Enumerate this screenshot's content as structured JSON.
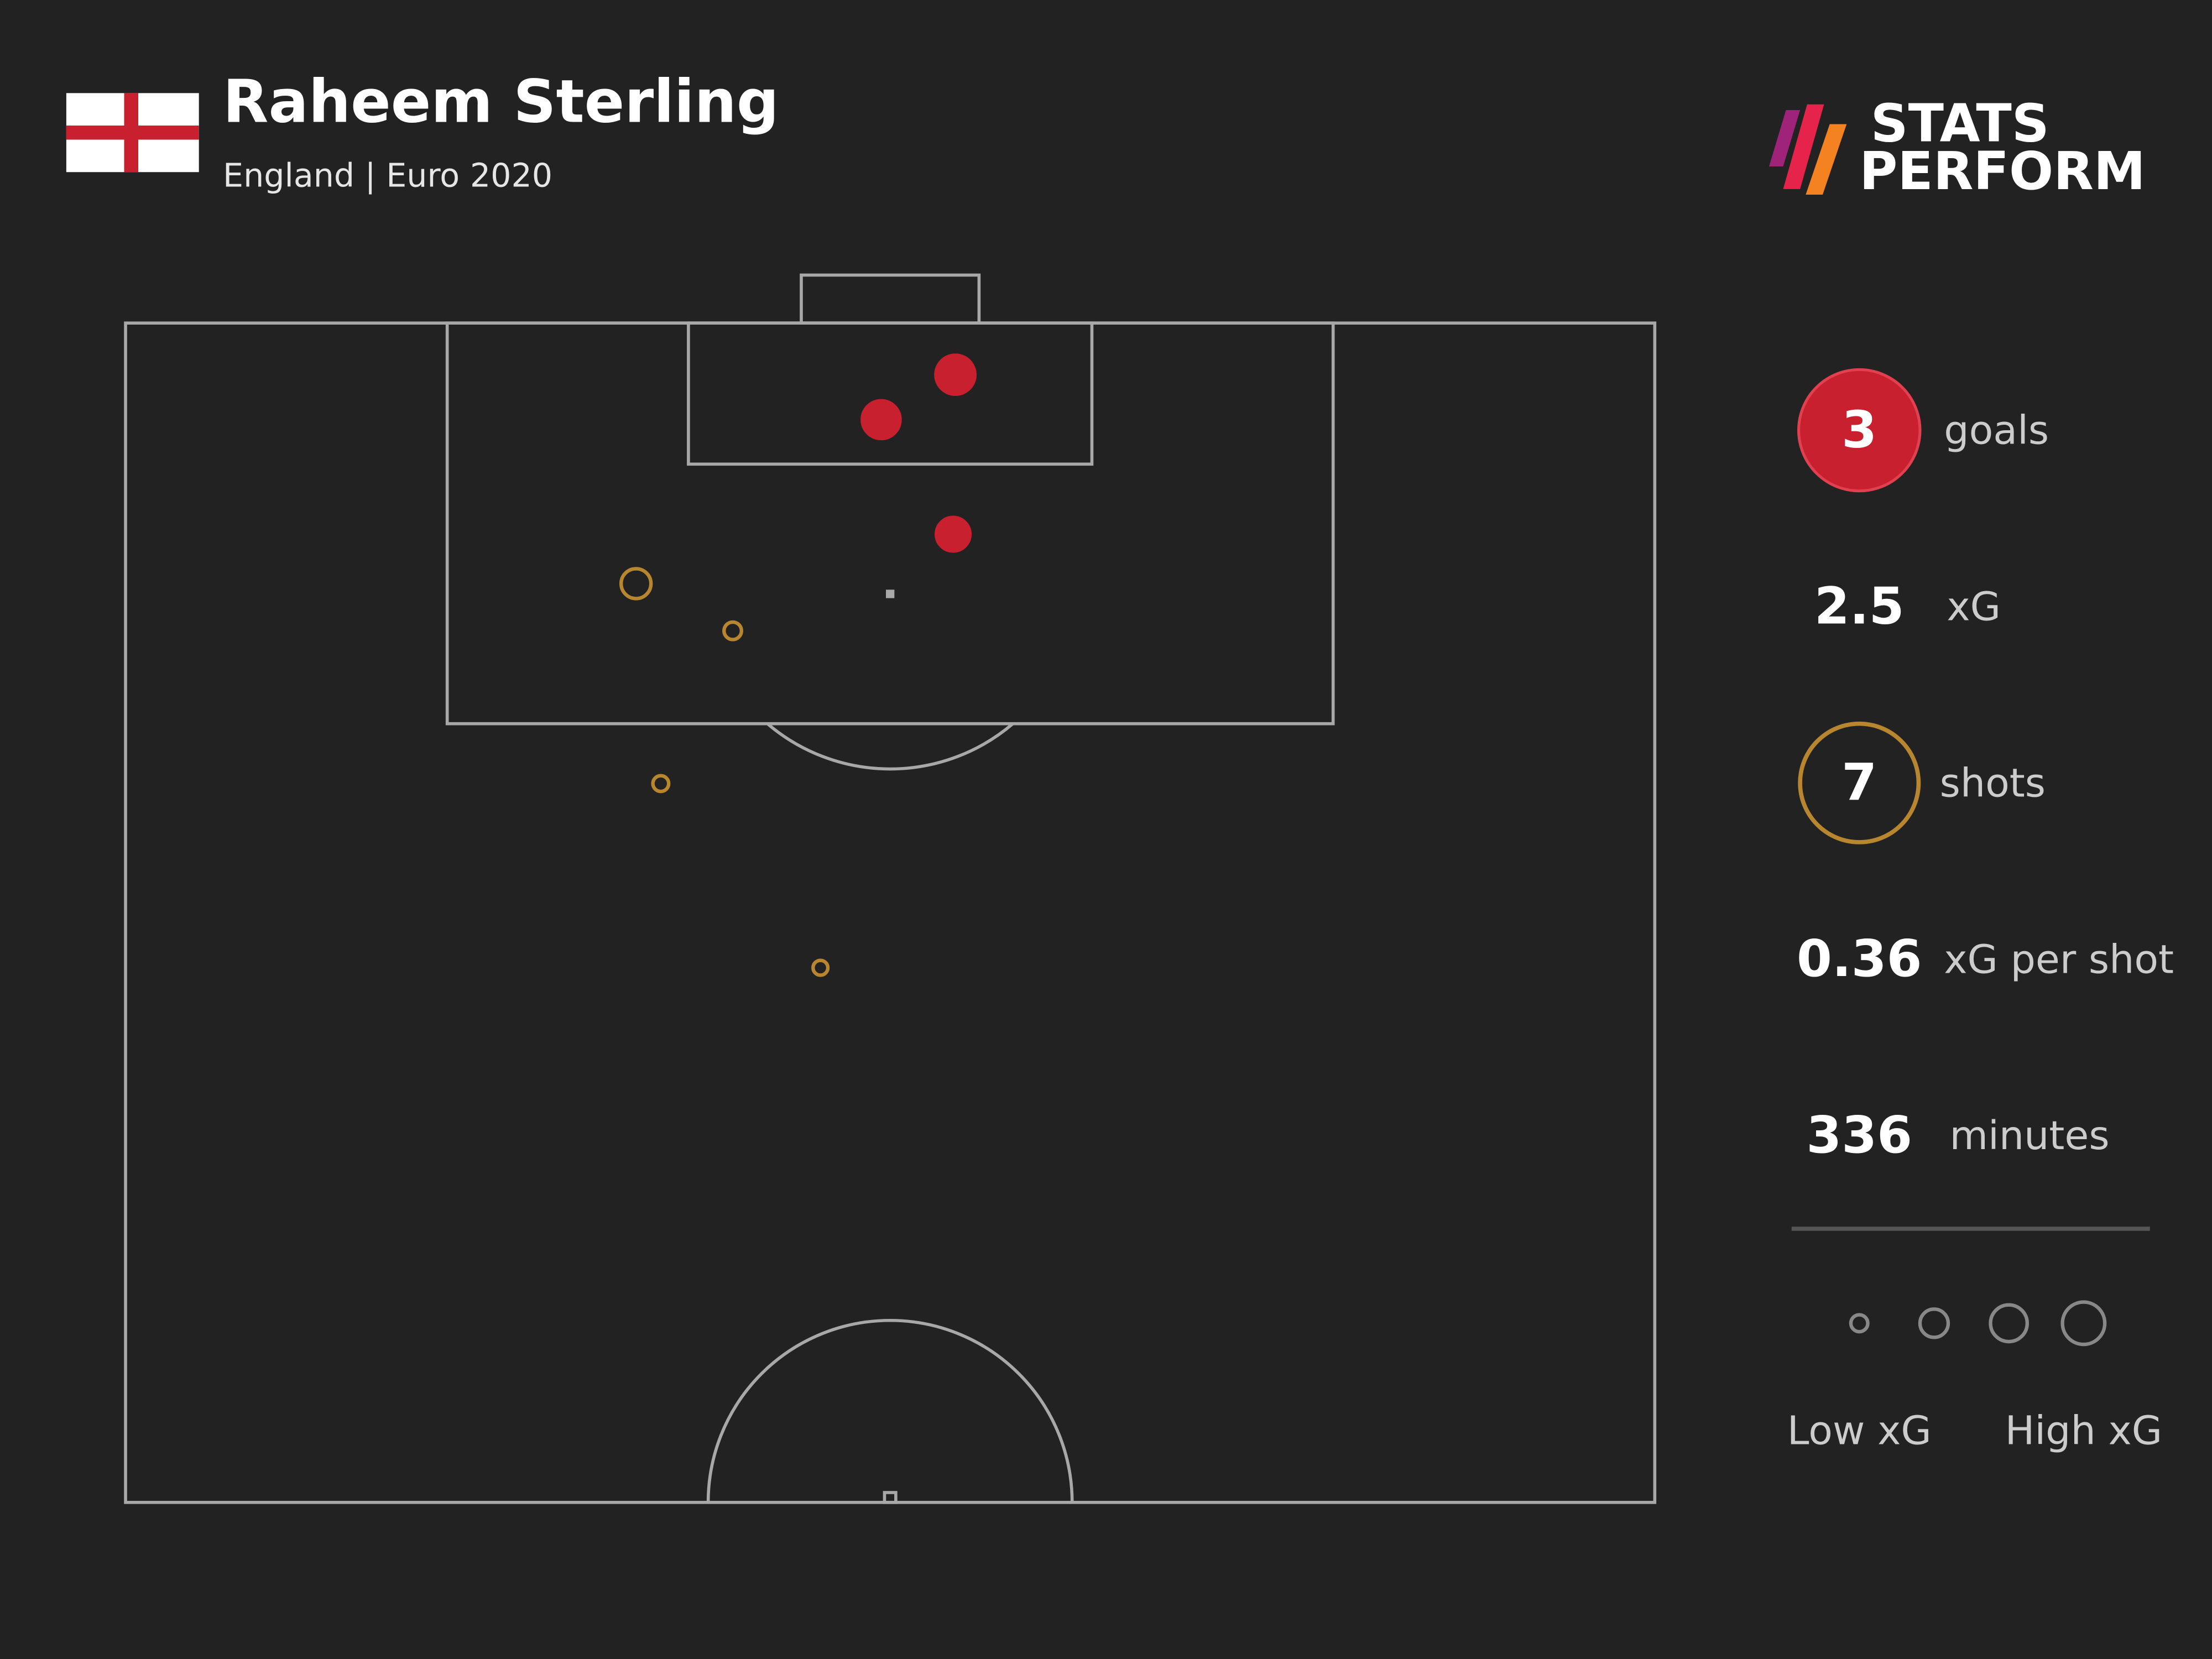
{
  "chart_data": {
    "type": "scatter",
    "title": "Raheem Sterling",
    "subtitle": "England | Euro 2020",
    "xlim": [
      0,
      68
    ],
    "ylim": [
      0,
      52.5
    ],
    "series": [
      {
        "color": "#c8202f",
        "filled": true,
        "x": [
          36.9,
          33.6,
          36.8
        ],
        "y": [
          2.3,
          4.3,
          9.4
        ],
        "sizes": [
          0.79,
          0.73,
          0.55
        ]
      },
      {
        "color": "#b8862e",
        "filled": false,
        "x": [
          22.7,
          27.0,
          23.8,
          30.9
        ],
        "y": [
          11.6,
          13.7,
          20.5,
          28.7
        ],
        "sizes": [
          0.34,
          0.06,
          0.04,
          0.03
        ]
      }
    ]
  },
  "stats": [
    {
      "value": 3,
      "label": "goals"
    },
    {
      "value": 2.5,
      "label": "xG"
    },
    {
      "value": 7,
      "label": "shots"
    },
    {
      "value": 0.36,
      "label": "xG per shot"
    },
    {
      "value": 336,
      "label": "minutes"
    }
  ],
  "legend": {
    "low": "Low xG",
    "high": "High xG"
  },
  "logo": [
    "STATS",
    "PERFORM"
  ]
}
